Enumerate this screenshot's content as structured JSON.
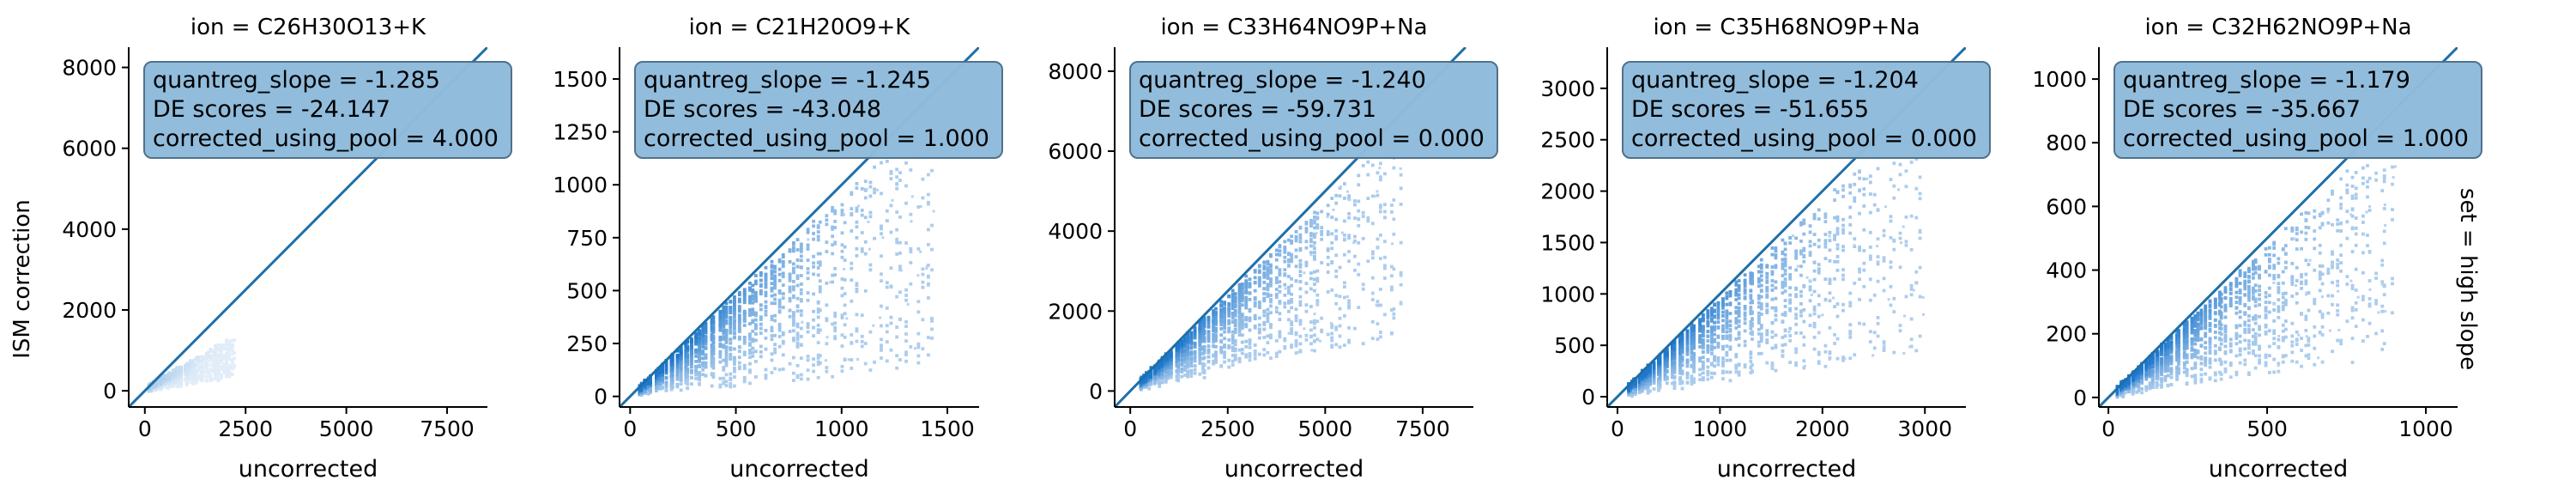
{
  "figure": {
    "ylabel": "ISM correction",
    "row_label": "set = high slope",
    "identity_color": "#1f6fa8",
    "hist_color": "#3d8fd8",
    "box_color": "#8fbbdc"
  },
  "chart_data": [
    {
      "type": "scatter",
      "title": "ion = C26H30O13+K",
      "xlabel": "uncorrected",
      "ylabel": "ISM correction",
      "xlim": [
        -400,
        8500
      ],
      "ylim": [
        -400,
        8500
      ],
      "xticks": [
        0,
        2500,
        5000,
        7500
      ],
      "yticks": [
        0,
        2000,
        4000,
        6000,
        8000
      ],
      "annotation": [
        "quantreg_slope = -1.285",
        "DE scores = -24.147",
        "corrected_using_pool = 4.000"
      ],
      "identity_line": true,
      "density": {
        "xmax": 2200,
        "slope_lo": 0.15,
        "slope_hi": 0.6,
        "opacity": 0.35
      }
    },
    {
      "type": "scatter",
      "title": "ion = C21H20O9+K",
      "xlabel": "uncorrected",
      "ylabel": "",
      "xlim": [
        -50,
        1650
      ],
      "ylim": [
        -50,
        1650
      ],
      "xticks": [
        0,
        500,
        1000,
        1500
      ],
      "yticks": [
        0,
        250,
        500,
        750,
        1000,
        1250,
        1500
      ],
      "annotation": [
        "quantreg_slope = -1.245",
        "DE scores = -43.048",
        "corrected_using_pool = 1.000"
      ],
      "identity_line": true,
      "density": {
        "xmax": 1450,
        "slope_lo": 0.1,
        "slope_hi": 0.95,
        "opacity": 1
      }
    },
    {
      "type": "scatter",
      "title": "ion = C33H64NO9P+Na",
      "xlabel": "uncorrected",
      "ylabel": "",
      "xlim": [
        -400,
        8800
      ],
      "ylim": [
        -400,
        8600
      ],
      "xticks": [
        0,
        2500,
        5000,
        7500
      ],
      "yticks": [
        0,
        2000,
        4000,
        6000,
        8000
      ],
      "annotation": [
        "quantreg_slope = -1.240",
        "DE scores = -59.731",
        "corrected_using_pool = 0.000"
      ],
      "identity_line": true,
      "density": {
        "xmax": 7000,
        "slope_lo": 0.2,
        "slope_hi": 0.95,
        "opacity": 1
      }
    },
    {
      "type": "scatter",
      "title": "ion = C35H68NO9P+Na",
      "xlabel": "uncorrected",
      "ylabel": "",
      "xlim": [
        -100,
        3400
      ],
      "ylim": [
        -100,
        3400
      ],
      "xticks": [
        0,
        1000,
        2000,
        3000
      ],
      "yticks": [
        0,
        500,
        1000,
        1500,
        2000,
        2500,
        3000
      ],
      "annotation": [
        "quantreg_slope = -1.204",
        "DE scores = -51.655",
        "corrected_using_pool = 0.000"
      ],
      "identity_line": true,
      "density": {
        "xmax": 3000,
        "slope_lo": 0.15,
        "slope_hi": 0.95,
        "opacity": 1
      }
    },
    {
      "type": "scatter",
      "title": "ion = C32H62NO9P+Na",
      "xlabel": "uncorrected",
      "ylabel": "",
      "xlim": [
        -30,
        1100
      ],
      "ylim": [
        -30,
        1100
      ],
      "xticks": [
        0,
        500,
        1000
      ],
      "yticks": [
        0,
        200,
        400,
        600,
        800,
        1000
      ],
      "annotation": [
        "quantreg_slope = -1.179",
        "DE scores = -35.667",
        "corrected_using_pool = 1.000"
      ],
      "identity_line": true,
      "density": {
        "xmax": 900,
        "slope_lo": 0.15,
        "slope_hi": 0.95,
        "opacity": 1
      }
    }
  ]
}
